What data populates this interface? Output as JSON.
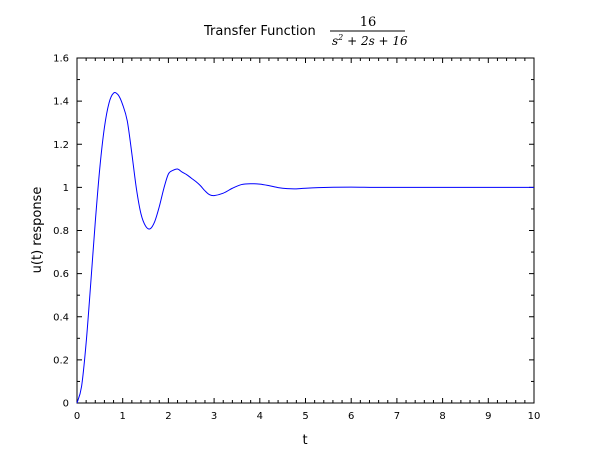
{
  "chart_data": {
    "type": "line",
    "title": "Transfer Function",
    "title_fraction": {
      "numerator": "16",
      "denominator_parts": [
        "s",
        "2",
        " + 2s + 16"
      ]
    },
    "xlabel": "t",
    "ylabel": "u(t) response",
    "xlim": [
      0,
      10
    ],
    "ylim": [
      0,
      1.6
    ],
    "x_ticks": [
      "0",
      "1",
      "2",
      "3",
      "4",
      "5",
      "6",
      "7",
      "8",
      "9",
      "10"
    ],
    "y_ticks": [
      "0",
      "0.2",
      "0.4",
      "0.6",
      "0.8",
      "1",
      "1.2",
      "1.4",
      "1.6"
    ],
    "grid": false,
    "line_color": "#0000ff",
    "series": [
      {
        "x": [
          0,
          0.1,
          0.2,
          0.3,
          0.4,
          0.5,
          0.6,
          0.7,
          0.8,
          0.9,
          1.0,
          1.1,
          1.2,
          1.3,
          1.4,
          1.5,
          1.6,
          1.7,
          1.8,
          1.9,
          2.0,
          2.1,
          2.2,
          2.3,
          2.4,
          2.5,
          2.6,
          2.7,
          2.8,
          2.9,
          3.0,
          3.2,
          3.4,
          3.6,
          3.8,
          4.0,
          4.2,
          4.4,
          4.6,
          4.8,
          5.0,
          5.5,
          6.0,
          6.5,
          7.0,
          8.0,
          9.0,
          10.0
        ],
        "values": [
          0,
          0.077,
          0.279,
          0.553,
          0.84,
          1.092,
          1.278,
          1.391,
          1.437,
          1.429,
          1.383,
          1.308,
          1.157,
          0.994,
          0.877,
          0.821,
          0.808,
          0.841,
          0.91,
          0.995,
          1.062,
          1.079,
          1.085,
          1.071,
          1.059,
          1.043,
          1.027,
          1.008,
          0.984,
          0.966,
          0.962,
          0.973,
          0.996,
          1.013,
          1.017,
          1.015,
          1.008,
          0.999,
          0.994,
          0.993,
          0.996,
          1.0,
          1.001,
          1.0,
          1.0,
          1.0,
          1.0,
          1.0
        ]
      }
    ]
  }
}
